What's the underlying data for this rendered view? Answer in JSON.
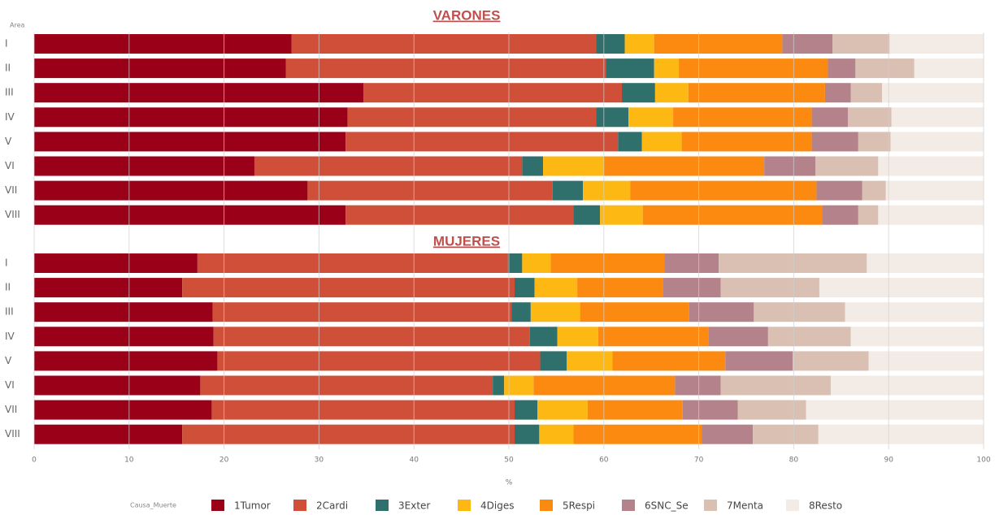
{
  "chart_data": [
    {
      "type": "stacked_bar_h",
      "title": "VARONES",
      "ylabel": "Area",
      "legend_title": "Causa_Muerte",
      "categories": [
        "I",
        "II",
        "III",
        "IV",
        "V",
        "VI",
        "VII",
        "VIII"
      ],
      "series": [
        {
          "name": "1Tumor",
          "color": "#9b0019",
          "values": [
            27.1,
            26.5,
            34.7,
            33.0,
            32.8,
            23.2,
            28.8,
            32.8
          ]
        },
        {
          "name": "2Cardi",
          "color": "#d04f38",
          "values": [
            32.1,
            33.7,
            27.2,
            26.2,
            28.7,
            28.2,
            25.8,
            24.0
          ]
        },
        {
          "name": "3Exter",
          "color": "#2f6f6c",
          "values": [
            3.0,
            5.1,
            3.5,
            3.4,
            2.5,
            2.2,
            3.2,
            2.8
          ]
        },
        {
          "name": "4Diges",
          "color": "#fdb813",
          "values": [
            3.1,
            2.6,
            3.5,
            4.7,
            4.2,
            6.4,
            5.0,
            4.5
          ]
        },
        {
          "name": "5Respi",
          "color": "#fc8a10",
          "values": [
            13.5,
            15.7,
            14.4,
            14.6,
            13.7,
            16.9,
            19.6,
            18.9
          ]
        },
        {
          "name": "6SNC_Se",
          "color": "#b3828a",
          "values": [
            5.3,
            2.9,
            2.7,
            3.8,
            4.9,
            5.4,
            4.8,
            3.8
          ]
        },
        {
          "name": "7Menta",
          "color": "#d9c0b3",
          "values": [
            6.0,
            6.2,
            3.3,
            4.6,
            3.4,
            6.6,
            2.5,
            2.1
          ]
        },
        {
          "name": "8Resto",
          "color": "#f3ebe5",
          "values": [
            9.9,
            7.3,
            10.7,
            9.7,
            9.8,
            11.1,
            10.3,
            11.1
          ]
        }
      ]
    },
    {
      "type": "stacked_bar_h",
      "title": "MUJERES",
      "xlabel": "%",
      "xlim": [
        0,
        100
      ],
      "xticks": [
        0,
        10,
        20,
        30,
        40,
        50,
        60,
        70,
        80,
        90,
        100
      ],
      "categories": [
        "I",
        "II",
        "III",
        "IV",
        "V",
        "VI",
        "VII",
        "VIII"
      ],
      "series": [
        {
          "values": [
            17.2,
            15.6,
            18.8,
            18.9,
            19.3,
            17.5,
            18.7,
            15.6
          ]
        },
        {
          "values": [
            32.7,
            35.0,
            31.5,
            33.3,
            34.0,
            30.8,
            31.9,
            35.0
          ]
        },
        {
          "values": [
            1.5,
            2.1,
            2.0,
            2.9,
            2.8,
            1.2,
            2.4,
            2.6
          ]
        },
        {
          "values": [
            3.0,
            4.5,
            5.2,
            4.3,
            4.8,
            3.1,
            5.3,
            3.6
          ]
        },
        {
          "values": [
            12.0,
            9.0,
            11.5,
            11.6,
            11.9,
            14.9,
            10.0,
            13.5
          ]
        },
        {
          "values": [
            5.7,
            6.1,
            6.8,
            6.3,
            7.1,
            4.8,
            5.8,
            5.4
          ]
        },
        {
          "values": [
            15.6,
            10.4,
            9.6,
            8.7,
            8.0,
            11.6,
            7.2,
            6.9
          ]
        },
        {
          "values": [
            12.3,
            17.3,
            14.6,
            14.0,
            12.1,
            16.1,
            18.7,
            17.4
          ]
        }
      ]
    }
  ]
}
